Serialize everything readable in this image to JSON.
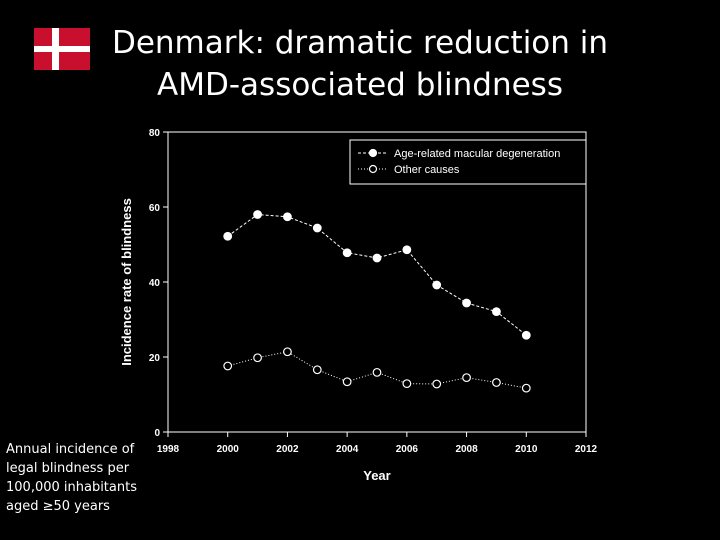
{
  "slide": {
    "title_line1": "Denmark: dramatic reduction in",
    "title_line2": "AMD-associated blindness",
    "caption_lines": [
      "Annual incidence of",
      "legal blindness per",
      "100,000 inhabitants",
      "aged ≥50 years"
    ],
    "flag": {
      "country": "Denmark",
      "red": "#c8102e",
      "cross": "#ffffff"
    }
  },
  "chart_data": {
    "type": "line",
    "xlabel": "Year",
    "ylabel": "Incidence rate of blindness",
    "xlim": [
      1998,
      2012
    ],
    "ylim": [
      0,
      80
    ],
    "xticks": [
      1998,
      2000,
      2002,
      2004,
      2006,
      2008,
      2010,
      2012
    ],
    "yticks": [
      0,
      20,
      40,
      60,
      80
    ],
    "legend_position": "top-right",
    "grid": false,
    "series": [
      {
        "name": "Age-related macular degeneration",
        "style": "filled-circle-dashed",
        "x": [
          2000,
          2001,
          2002,
          2003,
          2004,
          2005,
          2006,
          2007,
          2008,
          2009,
          2010
        ],
        "y": [
          52.2,
          58,
          57.4,
          54.4,
          47.8,
          46.4,
          48.6,
          39.2,
          34.4,
          32.1,
          25.8
        ]
      },
      {
        "name": "Other causes",
        "style": "open-circle-dotted",
        "x": [
          2000,
          2001,
          2002,
          2003,
          2004,
          2005,
          2006,
          2007,
          2008,
          2009,
          2010
        ],
        "y": [
          17.6,
          19.8,
          21.4,
          16.6,
          13.4,
          15.9,
          12.9,
          12.8,
          14.5,
          13.2,
          11.7
        ]
      }
    ]
  }
}
